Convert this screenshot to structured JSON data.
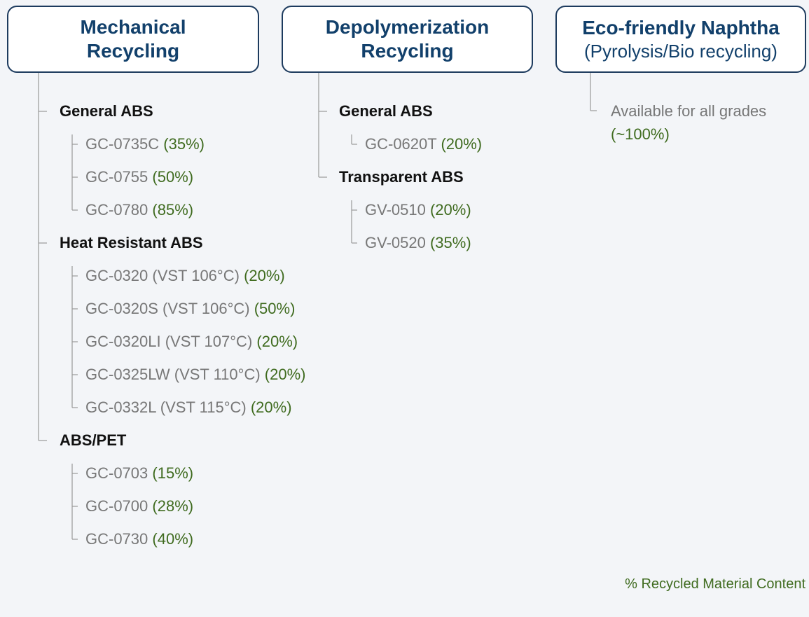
{
  "columns": [
    {
      "title": "Mechanical Recycling",
      "groups": [
        {
          "name": "General ABS",
          "items": [
            {
              "grade": "GC-0735C",
              "content": "(35%)"
            },
            {
              "grade": "GC-0755",
              "content": "(50%)"
            },
            {
              "grade": "GC-0780",
              "content": "(85%)"
            }
          ]
        },
        {
          "name": "Heat Resistant ABS",
          "items": [
            {
              "grade": "GC-0320 (VST 106°C)",
              "content": "(20%)"
            },
            {
              "grade": "GC-0320S (VST 106°C)",
              "content": "(50%)"
            },
            {
              "grade": "GC-0320LI (VST 107°C)",
              "content": "(20%)"
            },
            {
              "grade": "GC-0325LW (VST 110°C)",
              "content": "(20%)"
            },
            {
              "grade": "GC-0332L (VST 115°C)",
              "content": "(20%)"
            }
          ]
        },
        {
          "name": "ABS/PET",
          "items": [
            {
              "grade": "GC-0703",
              "content": "(15%)"
            },
            {
              "grade": "GC-0700",
              "content": "(28%)"
            },
            {
              "grade": "GC-0730",
              "content": "(40%)"
            }
          ]
        }
      ]
    },
    {
      "title": "Depolymerization Recycling",
      "groups": [
        {
          "name": "General ABS",
          "items": [
            {
              "grade": "GC-0620T",
              "content": "(20%)"
            }
          ]
        },
        {
          "name": "Transparent ABS",
          "items": [
            {
              "grade": "GV-0510",
              "content": "(20%)"
            },
            {
              "grade": "GV-0520",
              "content": "(35%)"
            }
          ]
        }
      ]
    }
  ],
  "naphtha": {
    "title": "Eco-friendly Naphtha",
    "subtitle": "(Pyrolysis/Bio recycling)",
    "note": "Available for all grades",
    "content": "(~100%)"
  },
  "footer": "% Recycled Material Content"
}
